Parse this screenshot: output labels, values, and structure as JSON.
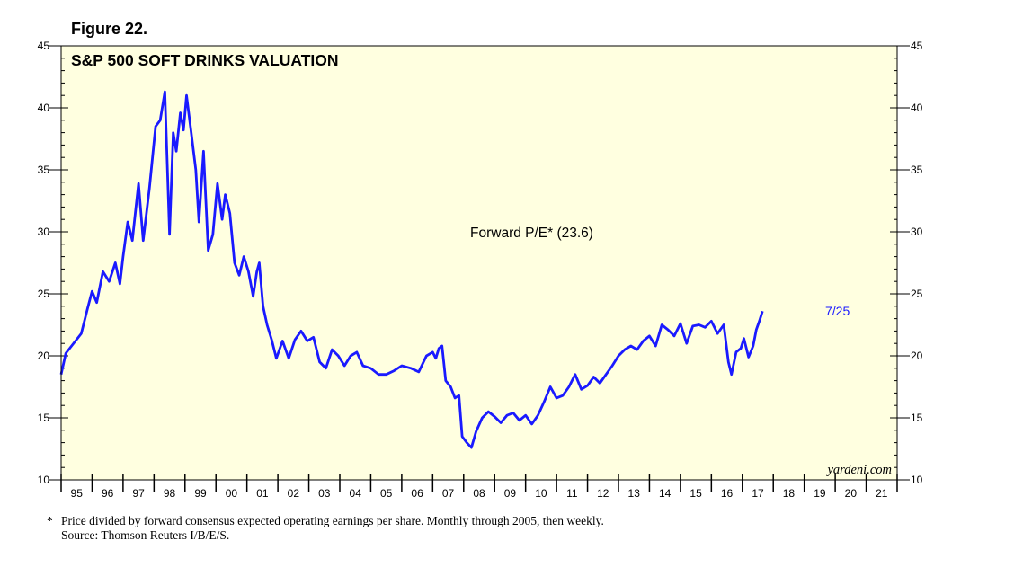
{
  "figure_label": "Figure 22.",
  "colors": {
    "plot_bg": "#ffffe0",
    "line": "#1a1aff",
    "axis": "#000000"
  },
  "chart_data": {
    "type": "line",
    "title": "S&P 500 SOFT DRINKS VALUATION",
    "series": [
      {
        "name": "Forward P/E* (23.6)",
        "end_label": "7/25",
        "points": [
          [
            1995.0,
            18.5
          ],
          [
            1995.15,
            20.2
          ],
          [
            1995.4,
            21.0
          ],
          [
            1995.65,
            21.8
          ],
          [
            1995.85,
            23.8
          ],
          [
            1996.0,
            25.2
          ],
          [
            1996.15,
            24.3
          ],
          [
            1996.35,
            26.8
          ],
          [
            1996.55,
            26.0
          ],
          [
            1996.75,
            27.5
          ],
          [
            1996.9,
            25.8
          ],
          [
            1997.0,
            28.0
          ],
          [
            1997.15,
            30.8
          ],
          [
            1997.3,
            29.3
          ],
          [
            1997.5,
            33.9
          ],
          [
            1997.65,
            29.3
          ],
          [
            1997.85,
            33.5
          ],
          [
            1998.05,
            38.5
          ],
          [
            1998.2,
            39.0
          ],
          [
            1998.35,
            41.3
          ],
          [
            1998.5,
            29.8
          ],
          [
            1998.62,
            38.0
          ],
          [
            1998.72,
            36.5
          ],
          [
            1998.85,
            39.6
          ],
          [
            1998.95,
            38.2
          ],
          [
            1999.05,
            41.0
          ],
          [
            1999.2,
            38.0
          ],
          [
            1999.35,
            35.0
          ],
          [
            1999.45,
            30.8
          ],
          [
            1999.6,
            36.5
          ],
          [
            1999.75,
            28.5
          ],
          [
            1999.9,
            29.8
          ],
          [
            2000.05,
            33.9
          ],
          [
            2000.2,
            31.0
          ],
          [
            2000.3,
            33.0
          ],
          [
            2000.45,
            31.5
          ],
          [
            2000.6,
            27.5
          ],
          [
            2000.75,
            26.5
          ],
          [
            2000.9,
            28.0
          ],
          [
            2001.05,
            26.8
          ],
          [
            2001.2,
            24.8
          ],
          [
            2001.32,
            26.8
          ],
          [
            2001.4,
            27.5
          ],
          [
            2001.52,
            24.0
          ],
          [
            2001.65,
            22.5
          ],
          [
            2001.8,
            21.3
          ],
          [
            2001.95,
            19.8
          ],
          [
            2002.15,
            21.2
          ],
          [
            2002.35,
            19.8
          ],
          [
            2002.55,
            21.3
          ],
          [
            2002.75,
            22.0
          ],
          [
            2002.95,
            21.2
          ],
          [
            2003.15,
            21.5
          ],
          [
            2003.35,
            19.5
          ],
          [
            2003.55,
            19.0
          ],
          [
            2003.75,
            20.5
          ],
          [
            2003.95,
            20.0
          ],
          [
            2004.15,
            19.2
          ],
          [
            2004.35,
            20.0
          ],
          [
            2004.55,
            20.3
          ],
          [
            2004.75,
            19.2
          ],
          [
            2005.0,
            19.0
          ],
          [
            2005.25,
            18.5
          ],
          [
            2005.5,
            18.5
          ],
          [
            2005.75,
            18.8
          ],
          [
            2006.0,
            19.2
          ],
          [
            2006.3,
            19.0
          ],
          [
            2006.55,
            18.7
          ],
          [
            2006.8,
            20.0
          ],
          [
            2007.0,
            20.3
          ],
          [
            2007.1,
            19.8
          ],
          [
            2007.2,
            20.6
          ],
          [
            2007.3,
            20.8
          ],
          [
            2007.42,
            18.0
          ],
          [
            2007.58,
            17.5
          ],
          [
            2007.72,
            16.6
          ],
          [
            2007.85,
            16.8
          ],
          [
            2007.95,
            13.5
          ],
          [
            2008.1,
            13.0
          ],
          [
            2008.25,
            12.6
          ],
          [
            2008.4,
            13.9
          ],
          [
            2008.6,
            15.0
          ],
          [
            2008.8,
            15.5
          ],
          [
            2009.0,
            15.1
          ],
          [
            2009.2,
            14.6
          ],
          [
            2009.4,
            15.2
          ],
          [
            2009.6,
            15.4
          ],
          [
            2009.8,
            14.8
          ],
          [
            2010.0,
            15.2
          ],
          [
            2010.2,
            14.5
          ],
          [
            2010.4,
            15.2
          ],
          [
            2010.6,
            16.3
          ],
          [
            2010.8,
            17.5
          ],
          [
            2011.0,
            16.6
          ],
          [
            2011.2,
            16.8
          ],
          [
            2011.4,
            17.5
          ],
          [
            2011.6,
            18.5
          ],
          [
            2011.8,
            17.3
          ],
          [
            2012.0,
            17.6
          ],
          [
            2012.2,
            18.3
          ],
          [
            2012.4,
            17.8
          ],
          [
            2012.6,
            18.5
          ],
          [
            2012.8,
            19.2
          ],
          [
            2013.0,
            20.0
          ],
          [
            2013.2,
            20.5
          ],
          [
            2013.4,
            20.8
          ],
          [
            2013.6,
            20.5
          ],
          [
            2013.8,
            21.2
          ],
          [
            2014.0,
            21.6
          ],
          [
            2014.2,
            20.8
          ],
          [
            2014.4,
            22.5
          ],
          [
            2014.6,
            22.1
          ],
          [
            2014.8,
            21.6
          ],
          [
            2015.0,
            22.6
          ],
          [
            2015.2,
            21.0
          ],
          [
            2015.4,
            22.4
          ],
          [
            2015.6,
            22.5
          ],
          [
            2015.8,
            22.3
          ],
          [
            2016.0,
            22.8
          ],
          [
            2016.2,
            21.8
          ],
          [
            2016.4,
            22.5
          ],
          [
            2016.55,
            19.5
          ],
          [
            2016.65,
            18.5
          ],
          [
            2016.8,
            20.3
          ],
          [
            2016.95,
            20.6
          ],
          [
            2017.05,
            21.4
          ],
          [
            2017.2,
            19.9
          ],
          [
            2017.35,
            20.8
          ],
          [
            2017.45,
            22.1
          ],
          [
            2017.55,
            22.8
          ],
          [
            2017.65,
            23.6
          ]
        ]
      }
    ],
    "y_axis": {
      "min": 10,
      "max": 45,
      "ticks": [
        10,
        15,
        20,
        25,
        30,
        35,
        40,
        45
      ]
    },
    "x_axis": {
      "categories": [
        "95",
        "96",
        "97",
        "98",
        "99",
        "00",
        "01",
        "02",
        "03",
        "04",
        "05",
        "06",
        "07",
        "08",
        "09",
        "10",
        "11",
        "12",
        "13",
        "14",
        "15",
        "16",
        "17",
        "18",
        "19",
        "20",
        "21"
      ]
    },
    "annotations": {
      "series_label": "Forward P/E* (23.6)",
      "watermark": "yardeni.com"
    }
  },
  "footnote": {
    "star": "*",
    "line1": "Price divided by forward consensus expected operating earnings per share. Monthly through 2005, then weekly.",
    "line2": "Source: Thomson Reuters I/B/E/S."
  }
}
